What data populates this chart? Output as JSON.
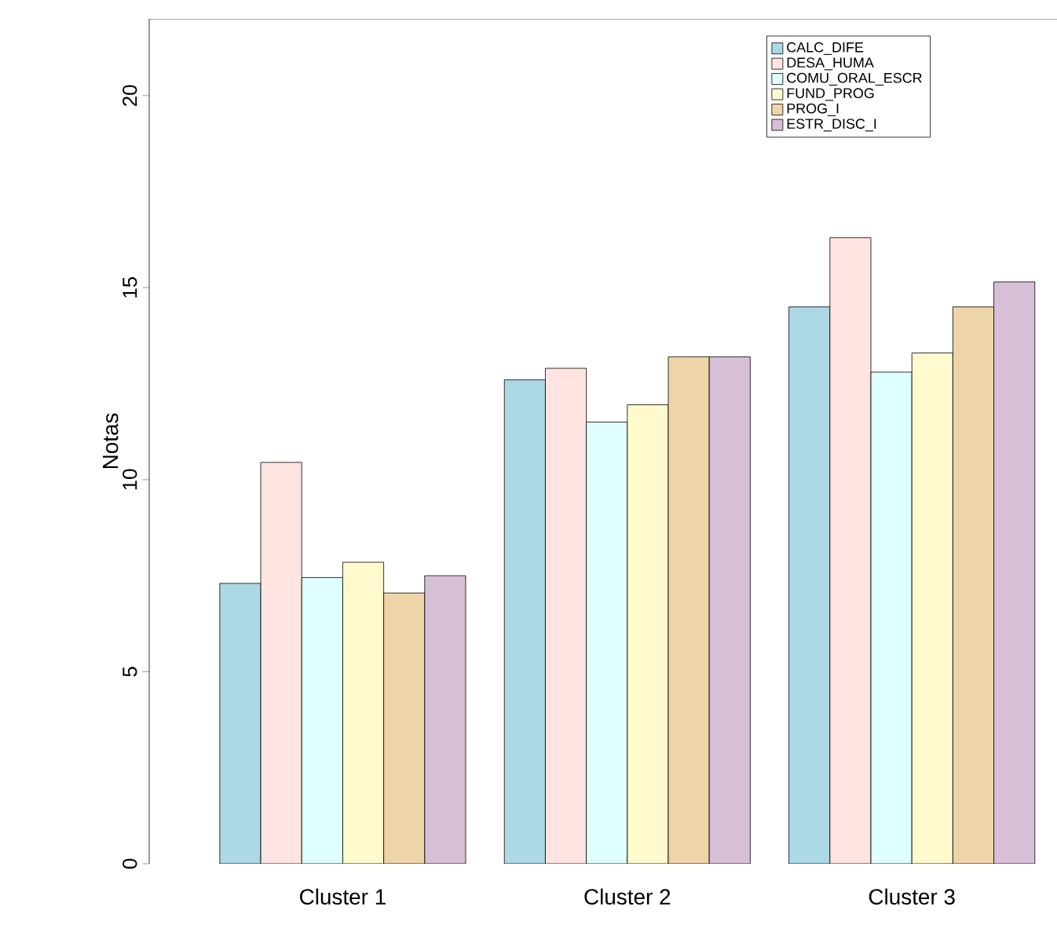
{
  "chart_data": {
    "type": "bar",
    "ylabel": "Notas",
    "categories": [
      "Cluster 1",
      "Cluster 2",
      "Cluster 3"
    ],
    "series": [
      {
        "name": "CALC_DIFE",
        "color": "#add8e6",
        "values": [
          7.3,
          12.6,
          14.5
        ]
      },
      {
        "name": "DESA_HUMA",
        "color": "#ffe4e1",
        "values": [
          10.45,
          12.9,
          16.3
        ]
      },
      {
        "name": "COMU_ORAL_ESCR",
        "color": "#e0ffff",
        "values": [
          7.45,
          11.5,
          12.8
        ]
      },
      {
        "name": "FUND_PROG",
        "color": "#fffacd",
        "values": [
          7.85,
          11.95,
          13.3
        ]
      },
      {
        "name": "PROG_I",
        "color": "#eed5a8",
        "values": [
          7.05,
          13.2,
          14.5
        ]
      },
      {
        "name": "ESTR_DISC_I",
        "color": "#d8bfd8",
        "values": [
          7.5,
          13.2,
          15.15
        ]
      }
    ],
    "ylim": [
      0,
      22
    ],
    "yticks": [
      0,
      5,
      10,
      15,
      20
    ],
    "legend": "top right",
    "grid": false
  }
}
